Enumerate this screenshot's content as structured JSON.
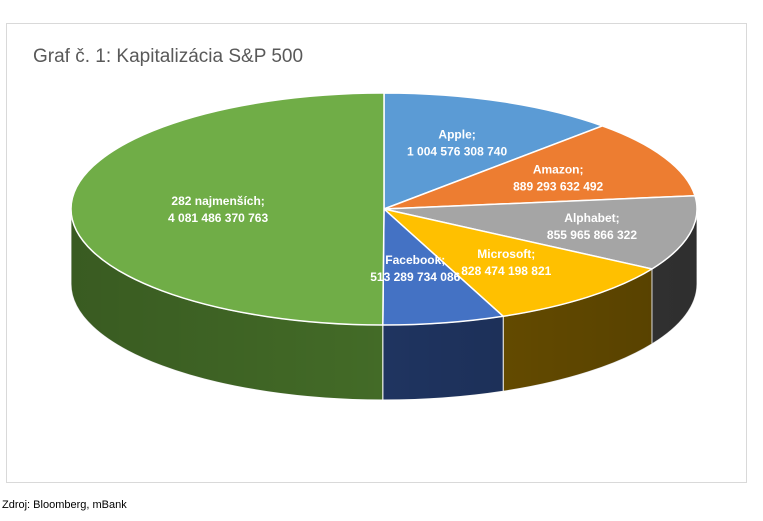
{
  "chart_data": {
    "type": "pie",
    "title": "Graf č. 1: Kapitalizácia S&P 500",
    "slices": [
      {
        "name": "Apple",
        "label": "Apple;",
        "value_label": "1 004 576 308 740",
        "value": 1004576308740,
        "color": "#5b9bd5",
        "side_color": "#2f5f8a"
      },
      {
        "name": "Amazon",
        "label": "Amazon;",
        "value_label": "889 293 632 492",
        "value": 889293632492,
        "color": "#ed7d31",
        "side_color": "#8a4214"
      },
      {
        "name": "Alphabet",
        "label": "Alphabet;",
        "value_label": "855 965 866 322",
        "value": 855965866322,
        "color": "#a5a5a5",
        "side_color": "#3a3a3a"
      },
      {
        "name": "Microsoft",
        "label": "Microsoft;",
        "value_label": "828 474 198 821",
        "value": 828474198821,
        "color": "#ffc000",
        "side_color": "#6b5000"
      },
      {
        "name": "Facebook",
        "label": "Facebook;",
        "value_label": "513 289 734 086",
        "value": 513289734086,
        "color": "#4472c4",
        "side_color": "#1f3460"
      },
      {
        "name": "282 najmenších",
        "label": "282 najmenších;",
        "value_label": "4 081 486 370 763",
        "value": 4081486370763,
        "color": "#70ad47",
        "side_color": "#436b27"
      }
    ]
  },
  "source": "Zdroj: Bloomberg, mBank"
}
